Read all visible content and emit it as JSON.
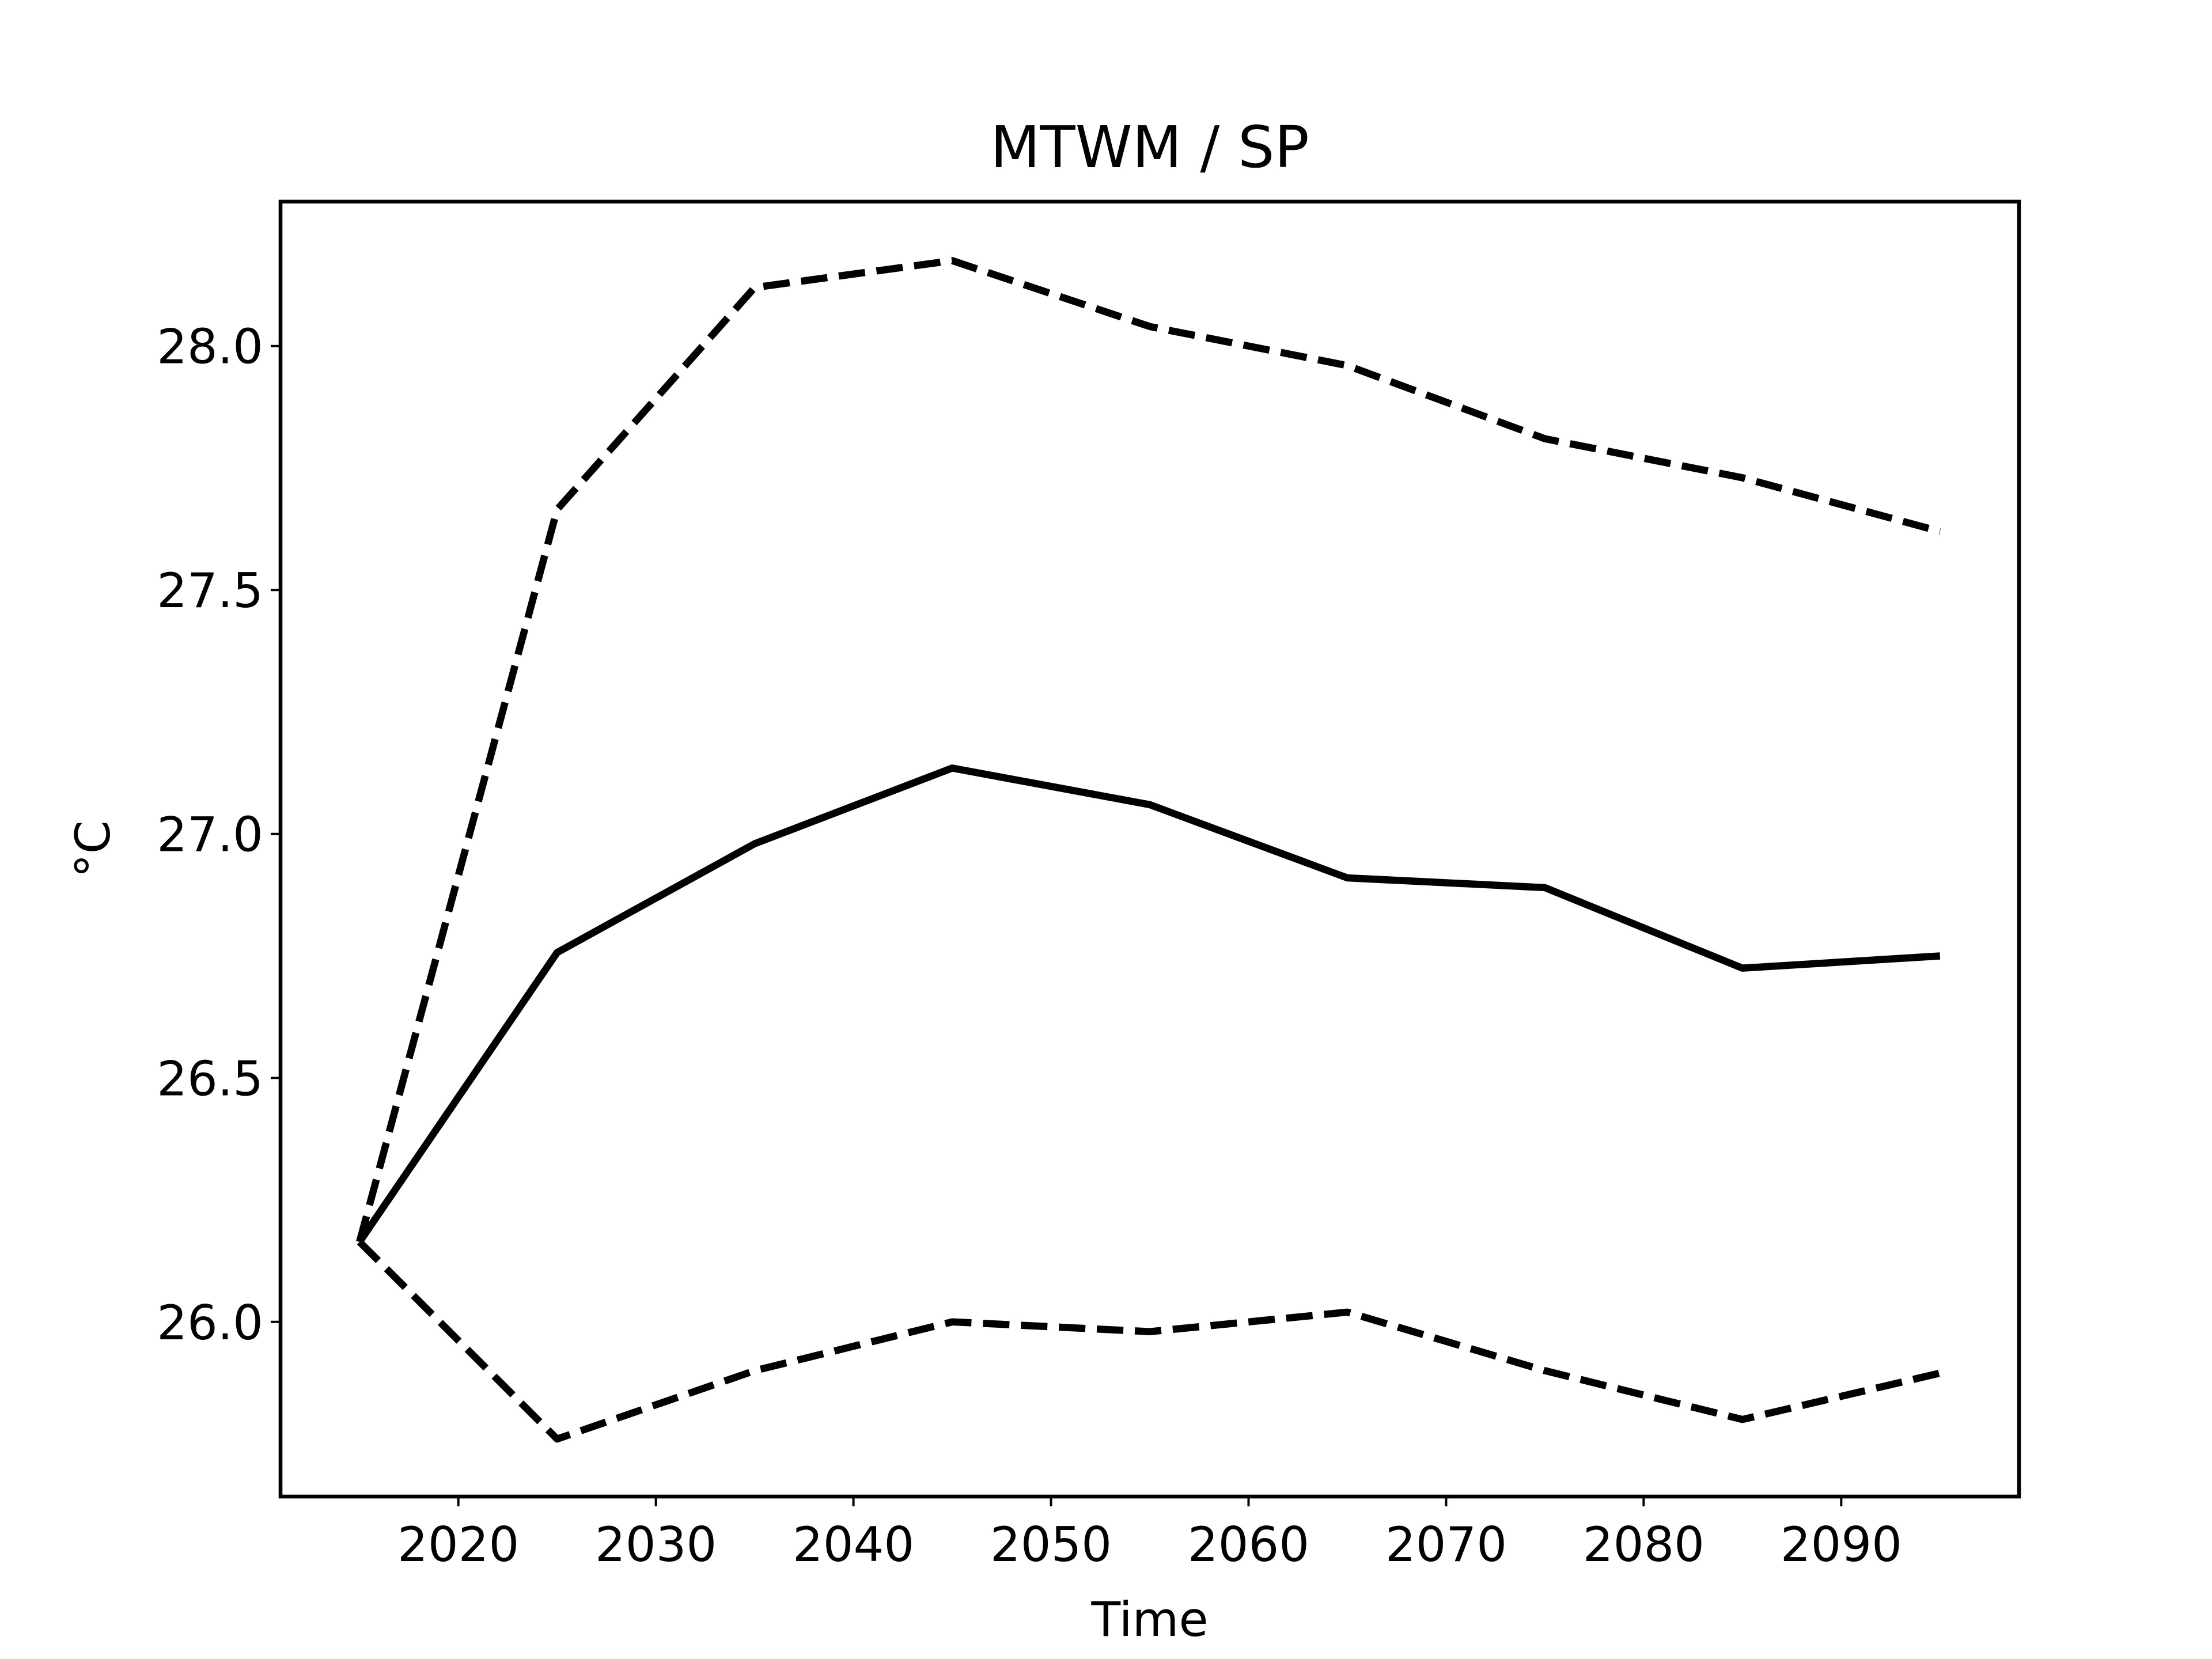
{
  "chart_data": {
    "type": "line",
    "title": "MTWM / SP",
    "xlabel": "Time",
    "ylabel": "°C",
    "x": [
      2015,
      2025,
      2035,
      2045,
      2055,
      2065,
      2075,
      2085,
      2095
    ],
    "series": [
      {
        "color": "#000000",
        "dash": false,
        "values": [
          26.164,
          26.757,
          26.98,
          27.135,
          27.06,
          26.91,
          26.89,
          26.725,
          26.75
        ]
      },
      {
        "color": "#000000",
        "dash": true,
        "values": [
          26.164,
          27.665,
          28.12,
          28.175,
          28.04,
          27.96,
          27.81,
          27.73,
          27.62
        ]
      },
      {
        "color": "#000000",
        "dash": true,
        "values": [
          26.164,
          25.76,
          25.9,
          26.0,
          25.98,
          26.02,
          25.9,
          25.8,
          25.895
        ]
      }
    ],
    "xlim": [
      2011,
      2099
    ],
    "ylim": [
      25.642,
      28.296
    ],
    "xticks": [
      2020,
      2030,
      2040,
      2050,
      2060,
      2070,
      2080,
      2090
    ],
    "yticks": [
      {
        "value": 26,
        "label": "26.0"
      },
      26.5,
      {
        "value": 27,
        "label": "27.0"
      },
      27.5,
      {
        "value": 28,
        "label": "28.0"
      }
    ],
    "grid": false
  }
}
